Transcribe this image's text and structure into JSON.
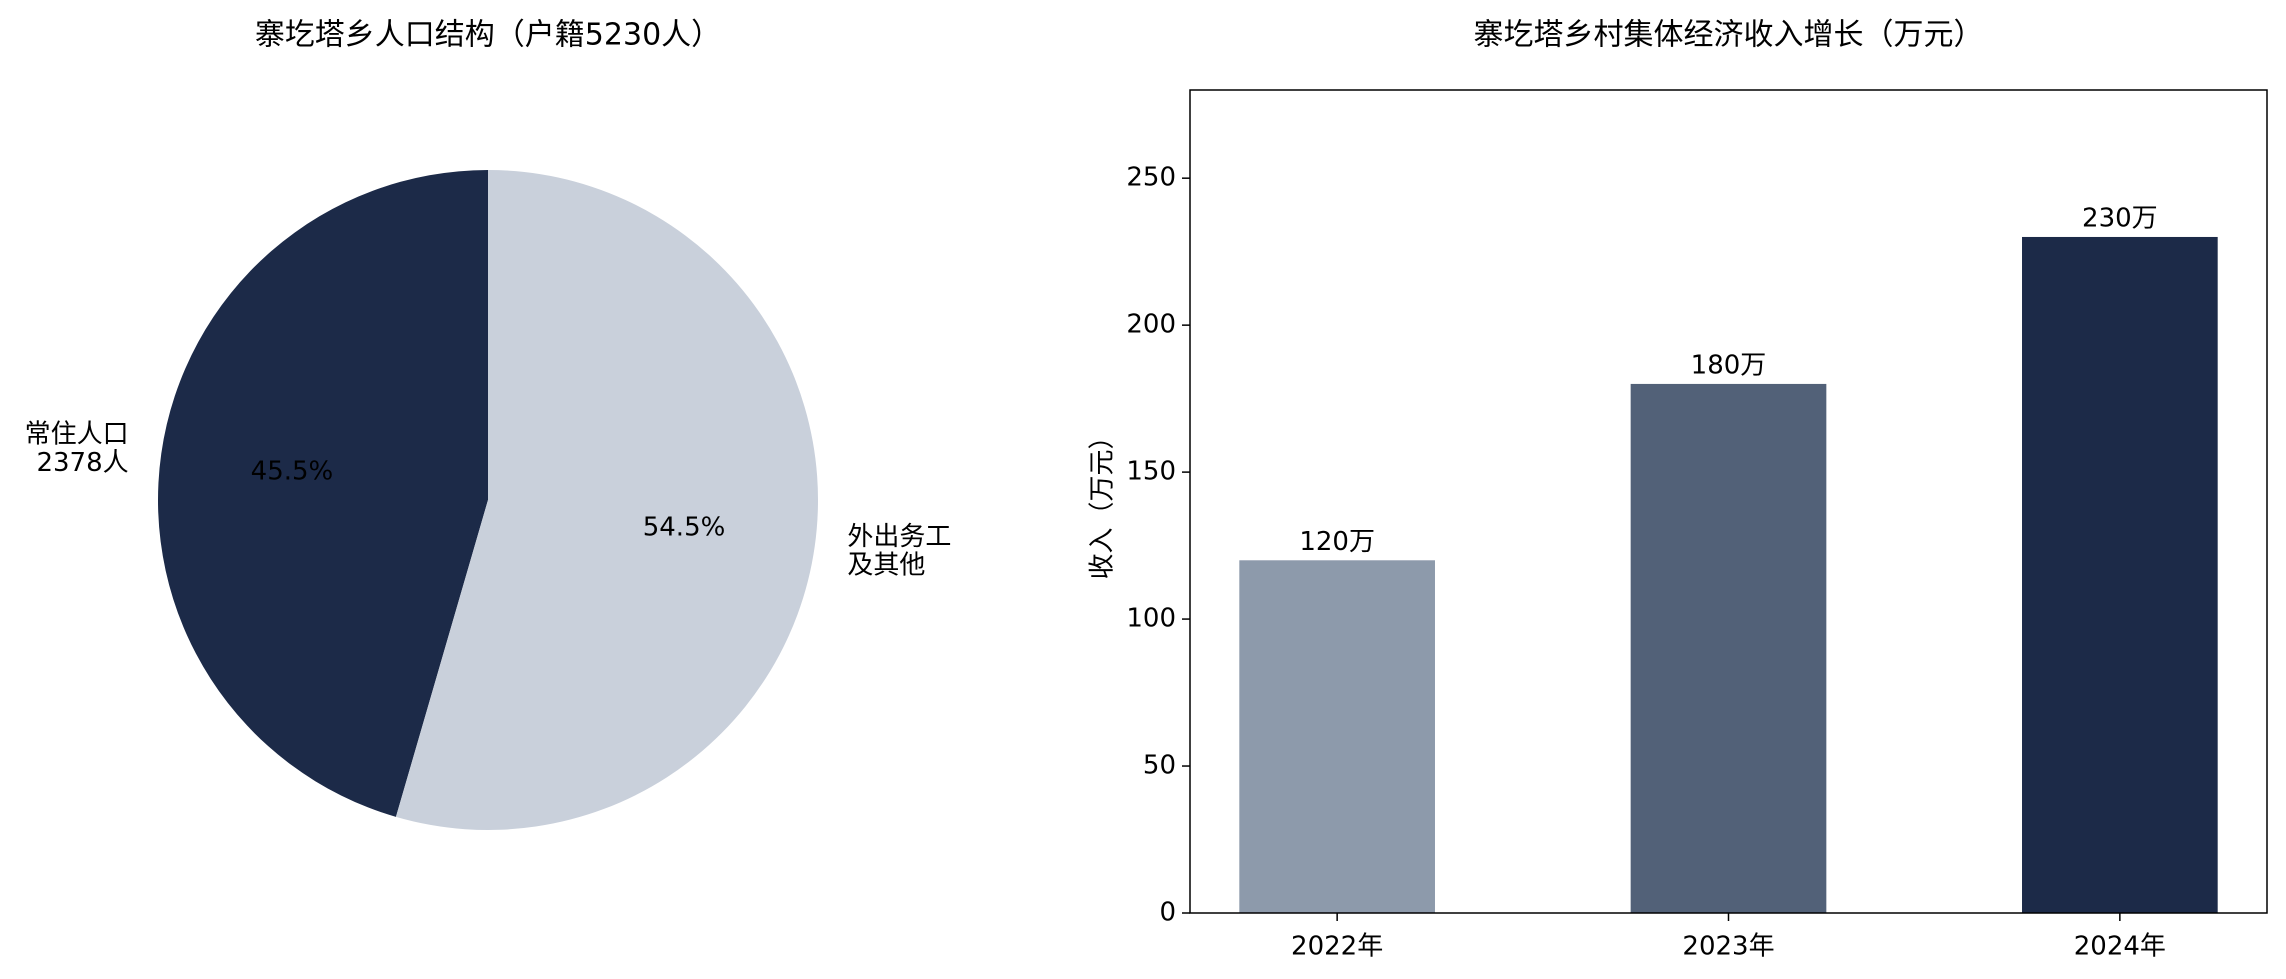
{
  "chart_data": [
    {
      "type": "pie",
      "title": "寨圪塔乡人口结构（户籍5230人）",
      "labels": [
        "常住人口\n2378人",
        "外出务工\n及其他"
      ],
      "values": [
        45.5,
        54.5
      ],
      "value_labels": [
        "45.5%",
        "54.5%"
      ],
      "colors": [
        "#1c2a48",
        "#c9d0db"
      ]
    },
    {
      "type": "bar",
      "title": "寨圪塔乡村集体经济收入增长（万元）",
      "categories": [
        "2022年",
        "2023年",
        "2024年"
      ],
      "values": [
        120,
        180,
        230
      ],
      "value_labels": [
        "120万",
        "180万",
        "230万"
      ],
      "colors": [
        "#8d9aab",
        "#526178",
        "#1c2a48"
      ],
      "ylabel": "收入（万元）",
      "ylim": [
        0,
        280
      ],
      "yticks": [
        0,
        50,
        100,
        150,
        200,
        250
      ]
    }
  ]
}
